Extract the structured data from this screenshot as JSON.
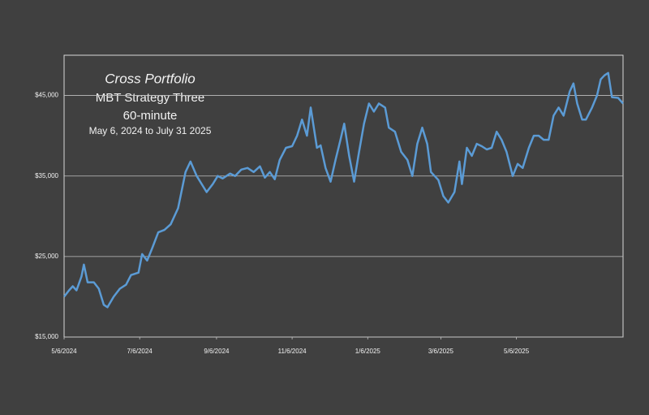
{
  "chart_data": {
    "type": "line",
    "title": "Cross Portfolio",
    "subtitle": [
      "MBT Strategy Three",
      "60-minute",
      "May 6, 2024 to July 31 2025"
    ],
    "x": [
      "2024-05-06",
      "2024-05-10",
      "2024-05-13",
      "2024-05-16",
      "2024-05-20",
      "2024-05-22",
      "2024-05-25",
      "2024-05-30",
      "2024-06-03",
      "2024-06-07",
      "2024-06-10",
      "2024-06-15",
      "2024-06-20",
      "2024-06-25",
      "2024-06-29",
      "2024-07-05",
      "2024-07-08",
      "2024-07-12",
      "2024-07-16",
      "2024-07-21",
      "2024-07-26",
      "2024-07-31",
      "2024-08-06",
      "2024-08-12",
      "2024-08-16",
      "2024-08-21",
      "2024-08-25",
      "2024-08-29",
      "2024-09-03",
      "2024-09-07",
      "2024-09-11",
      "2024-09-17",
      "2024-09-21",
      "2024-09-26",
      "2024-10-01",
      "2024-10-06",
      "2024-10-11",
      "2024-10-15",
      "2024-10-19",
      "2024-10-23",
      "2024-10-27",
      "2024-11-01",
      "2024-11-06",
      "2024-11-10",
      "2024-11-14",
      "2024-11-18",
      "2024-11-21",
      "2024-11-26",
      "2024-11-29",
      "2024-12-03",
      "2024-12-07",
      "2024-12-11",
      "2024-12-15",
      "2024-12-18",
      "2024-12-22",
      "2024-12-26",
      "2024-12-30",
      "2025-01-03",
      "2025-01-07",
      "2025-01-11",
      "2025-01-15",
      "2025-01-20",
      "2025-01-23",
      "2025-01-28",
      "2025-02-02",
      "2025-02-07",
      "2025-02-11",
      "2025-02-15",
      "2025-02-19",
      "2025-02-23",
      "2025-02-26",
      "2025-03-04",
      "2025-03-08",
      "2025-03-12",
      "2025-03-17",
      "2025-03-21",
      "2025-03-23",
      "2025-03-27",
      "2025-03-31",
      "2025-04-04",
      "2025-04-08",
      "2025-04-12",
      "2025-04-16",
      "2025-04-20",
      "2025-04-24",
      "2025-04-28",
      "2025-05-03",
      "2025-05-07",
      "2025-05-11",
      "2025-05-16",
      "2025-05-20",
      "2025-05-24",
      "2025-05-28",
      "2025-06-01",
      "2025-06-05",
      "2025-06-09",
      "2025-06-13",
      "2025-06-18",
      "2025-06-21",
      "2025-06-24",
      "2025-06-28",
      "2025-07-01",
      "2025-07-06",
      "2025-07-10",
      "2025-07-13",
      "2025-07-16",
      "2025-07-19",
      "2025-07-22",
      "2025-07-27",
      "2025-07-31"
    ],
    "series": [
      {
        "name": "Cross Portfolio",
        "color": "#5b9bd5",
        "values": [
          20000,
          20800,
          21300,
          20800,
          22500,
          24000,
          21800,
          21800,
          21000,
          19000,
          18700,
          20000,
          21000,
          21500,
          22700,
          23000,
          25300,
          24500,
          26000,
          28000,
          28300,
          29000,
          31000,
          35500,
          36800,
          35000,
          34000,
          33000,
          34000,
          35000,
          34700,
          35300,
          35000,
          35800,
          36000,
          35500,
          36200,
          34800,
          35500,
          34600,
          37000,
          38500,
          38700,
          40000,
          42000,
          40000,
          43500,
          38500,
          38800,
          36000,
          34300,
          37000,
          39500,
          41500,
          37500,
          34300,
          38000,
          41500,
          44000,
          43000,
          44000,
          43500,
          41000,
          40500,
          38000,
          37000,
          35000,
          39000,
          41000,
          39000,
          35500,
          34500,
          32500,
          31700,
          33000,
          36800,
          34000,
          38500,
          37500,
          39000,
          38700,
          38300,
          38500,
          40500,
          39500,
          38000,
          35000,
          36500,
          36000,
          38500,
          40000,
          40000,
          39500,
          39500,
          42500,
          43500,
          42500,
          45500,
          46500,
          44000,
          42000,
          42000,
          43500,
          45000,
          47000,
          47500,
          47800,
          44800,
          44700,
          44000
        ]
      }
    ],
    "xlim": [
      "2024-05-06",
      "2025-07-31"
    ],
    "xticks": [
      {
        "value": "2024-05-06",
        "label": "5/6/2024"
      },
      {
        "value": "2024-07-06",
        "label": "7/6/2024"
      },
      {
        "value": "2024-09-06",
        "label": "9/6/2024"
      },
      {
        "value": "2024-11-06",
        "label": "11/6/2024"
      },
      {
        "value": "2025-01-06",
        "label": "1/6/2025"
      },
      {
        "value": "2025-03-06",
        "label": "3/6/2025"
      },
      {
        "value": "2025-05-06",
        "label": "5/6/2025"
      }
    ],
    "ylim": [
      15000,
      50000
    ],
    "yticks": [
      {
        "value": 15000,
        "label": "$15,000"
      },
      {
        "value": 25000,
        "label": "$25,000"
      },
      {
        "value": 35000,
        "label": "$35,000"
      },
      {
        "value": 45000,
        "label": "$45,000"
      }
    ],
    "grid": true
  }
}
